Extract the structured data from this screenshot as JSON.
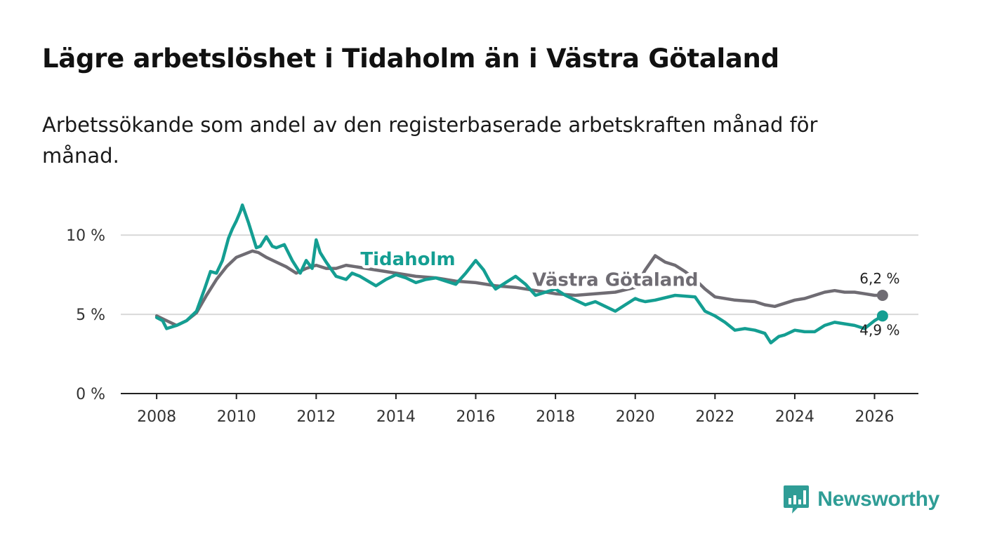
{
  "header": {
    "title": "Lägre arbetslöshet i Tidaholm än i Västra Götaland",
    "subtitle": "Arbetssökande som andel av den registerbaserade arbetskraften månad för månad."
  },
  "brand": {
    "name": "Newsworthy",
    "color": "#2f9d96"
  },
  "chart_data": {
    "type": "line",
    "title": "Lägre arbetslöshet i Tidaholm än i Västra Götaland",
    "subtitle": "Arbetssökande som andel av den registerbaserade arbetskraften månad för månad.",
    "xlabel": "",
    "ylabel": "",
    "xlim": [
      2007.1,
      2027.1
    ],
    "ylim": [
      0,
      12
    ],
    "x_ticks": [
      2008,
      2010,
      2012,
      2014,
      2016,
      2018,
      2020,
      2022,
      2024,
      2026
    ],
    "y_ticks": [
      {
        "value": 0,
        "label": "0 %"
      },
      {
        "value": 5,
        "label": "5 %"
      },
      {
        "value": 10,
        "label": "10 %"
      }
    ],
    "grid": true,
    "legend": "inline labels on lines",
    "series": [
      {
        "name": "Västra Götaland",
        "color": "#6f6c73",
        "end_label": "6,2 %",
        "points": [
          [
            2008.0,
            4.9
          ],
          [
            2008.25,
            4.6
          ],
          [
            2008.5,
            4.3
          ],
          [
            2008.75,
            4.6
          ],
          [
            2009.0,
            5.1
          ],
          [
            2009.25,
            6.2
          ],
          [
            2009.5,
            7.2
          ],
          [
            2009.75,
            8.0
          ],
          [
            2010.0,
            8.6
          ],
          [
            2010.2,
            8.8
          ],
          [
            2010.4,
            9.0
          ],
          [
            2010.55,
            8.9
          ],
          [
            2010.75,
            8.6
          ],
          [
            2011.0,
            8.3
          ],
          [
            2011.25,
            8.0
          ],
          [
            2011.5,
            7.6
          ],
          [
            2011.75,
            7.9
          ],
          [
            2012.0,
            8.1
          ],
          [
            2012.25,
            7.9
          ],
          [
            2012.5,
            7.9
          ],
          [
            2012.75,
            8.1
          ],
          [
            2013.0,
            8.0
          ],
          [
            2013.5,
            7.8
          ],
          [
            2014.0,
            7.6
          ],
          [
            2014.5,
            7.4
          ],
          [
            2015.0,
            7.3
          ],
          [
            2015.5,
            7.1
          ],
          [
            2016.0,
            7.0
          ],
          [
            2016.5,
            6.8
          ],
          [
            2017.0,
            6.7
          ],
          [
            2017.5,
            6.5
          ],
          [
            2018.0,
            6.3
          ],
          [
            2018.5,
            6.2
          ],
          [
            2019.0,
            6.3
          ],
          [
            2019.5,
            6.4
          ],
          [
            2020.0,
            6.7
          ],
          [
            2020.25,
            7.8
          ],
          [
            2020.5,
            8.7
          ],
          [
            2020.75,
            8.3
          ],
          [
            2021.0,
            8.1
          ],
          [
            2021.25,
            7.7
          ],
          [
            2021.5,
            7.2
          ],
          [
            2021.75,
            6.6
          ],
          [
            2022.0,
            6.1
          ],
          [
            2022.5,
            5.9
          ],
          [
            2023.0,
            5.8
          ],
          [
            2023.25,
            5.6
          ],
          [
            2023.5,
            5.5
          ],
          [
            2023.75,
            5.7
          ],
          [
            2024.0,
            5.9
          ],
          [
            2024.25,
            6.0
          ],
          [
            2024.5,
            6.2
          ],
          [
            2024.75,
            6.4
          ],
          [
            2025.0,
            6.5
          ],
          [
            2025.25,
            6.4
          ],
          [
            2025.5,
            6.4
          ],
          [
            2025.75,
            6.3
          ],
          [
            2026.0,
            6.2
          ],
          [
            2026.2,
            6.2
          ]
        ]
      },
      {
        "name": "Tidaholm",
        "color": "#149e92",
        "end_label": "4,9 %",
        "points": [
          [
            2008.0,
            4.8
          ],
          [
            2008.15,
            4.6
          ],
          [
            2008.25,
            4.1
          ],
          [
            2008.5,
            4.3
          ],
          [
            2008.75,
            4.6
          ],
          [
            2009.0,
            5.2
          ],
          [
            2009.2,
            6.6
          ],
          [
            2009.35,
            7.7
          ],
          [
            2009.5,
            7.6
          ],
          [
            2009.65,
            8.4
          ],
          [
            2009.8,
            9.8
          ],
          [
            2009.9,
            10.4
          ],
          [
            2010.0,
            10.9
          ],
          [
            2010.1,
            11.5
          ],
          [
            2010.15,
            11.9
          ],
          [
            2010.3,
            10.8
          ],
          [
            2010.5,
            9.2
          ],
          [
            2010.6,
            9.3
          ],
          [
            2010.75,
            9.9
          ],
          [
            2010.9,
            9.3
          ],
          [
            2011.0,
            9.2
          ],
          [
            2011.2,
            9.4
          ],
          [
            2011.4,
            8.4
          ],
          [
            2011.6,
            7.6
          ],
          [
            2011.75,
            8.4
          ],
          [
            2011.9,
            7.9
          ],
          [
            2012.0,
            9.7
          ],
          [
            2012.1,
            8.9
          ],
          [
            2012.25,
            8.3
          ],
          [
            2012.5,
            7.4
          ],
          [
            2012.75,
            7.2
          ],
          [
            2012.9,
            7.6
          ],
          [
            2013.1,
            7.4
          ],
          [
            2013.5,
            6.8
          ],
          [
            2013.75,
            7.2
          ],
          [
            2014.0,
            7.5
          ],
          [
            2014.25,
            7.3
          ],
          [
            2014.5,
            7.0
          ],
          [
            2014.75,
            7.2
          ],
          [
            2015.0,
            7.3
          ],
          [
            2015.25,
            7.1
          ],
          [
            2015.5,
            6.9
          ],
          [
            2015.75,
            7.6
          ],
          [
            2016.0,
            8.4
          ],
          [
            2016.2,
            7.8
          ],
          [
            2016.35,
            7.1
          ],
          [
            2016.5,
            6.6
          ],
          [
            2016.75,
            7.0
          ],
          [
            2017.0,
            7.4
          ],
          [
            2017.25,
            6.9
          ],
          [
            2017.5,
            6.2
          ],
          [
            2017.75,
            6.4
          ],
          [
            2018.0,
            6.6
          ],
          [
            2018.25,
            6.2
          ],
          [
            2018.5,
            5.9
          ],
          [
            2018.75,
            5.6
          ],
          [
            2019.0,
            5.8
          ],
          [
            2019.25,
            5.5
          ],
          [
            2019.5,
            5.2
          ],
          [
            2019.75,
            5.6
          ],
          [
            2020.0,
            6.0
          ],
          [
            2020.1,
            5.9
          ],
          [
            2020.25,
            5.8
          ],
          [
            2020.5,
            5.9
          ],
          [
            2021.0,
            6.2
          ],
          [
            2021.5,
            6.1
          ],
          [
            2021.75,
            5.2
          ],
          [
            2022.0,
            4.9
          ],
          [
            2022.25,
            4.5
          ],
          [
            2022.5,
            4.0
          ],
          [
            2022.75,
            4.1
          ],
          [
            2023.0,
            4.0
          ],
          [
            2023.25,
            3.8
          ],
          [
            2023.4,
            3.2
          ],
          [
            2023.6,
            3.6
          ],
          [
            2023.75,
            3.7
          ],
          [
            2024.0,
            4.0
          ],
          [
            2024.25,
            3.9
          ],
          [
            2024.5,
            3.9
          ],
          [
            2024.75,
            4.3
          ],
          [
            2025.0,
            4.5
          ],
          [
            2025.25,
            4.4
          ],
          [
            2025.5,
            4.3
          ],
          [
            2025.75,
            4.1
          ],
          [
            2026.0,
            4.6
          ],
          [
            2026.2,
            4.9
          ]
        ]
      }
    ],
    "annotations": [
      {
        "text": "Tidaholm",
        "series": "Tidaholm",
        "x": 2014.3,
        "y": 8.1
      },
      {
        "text": "Västra Götaland",
        "series": "Västra Götaland",
        "x": 2019.5,
        "y": 6.8
      }
    ]
  }
}
